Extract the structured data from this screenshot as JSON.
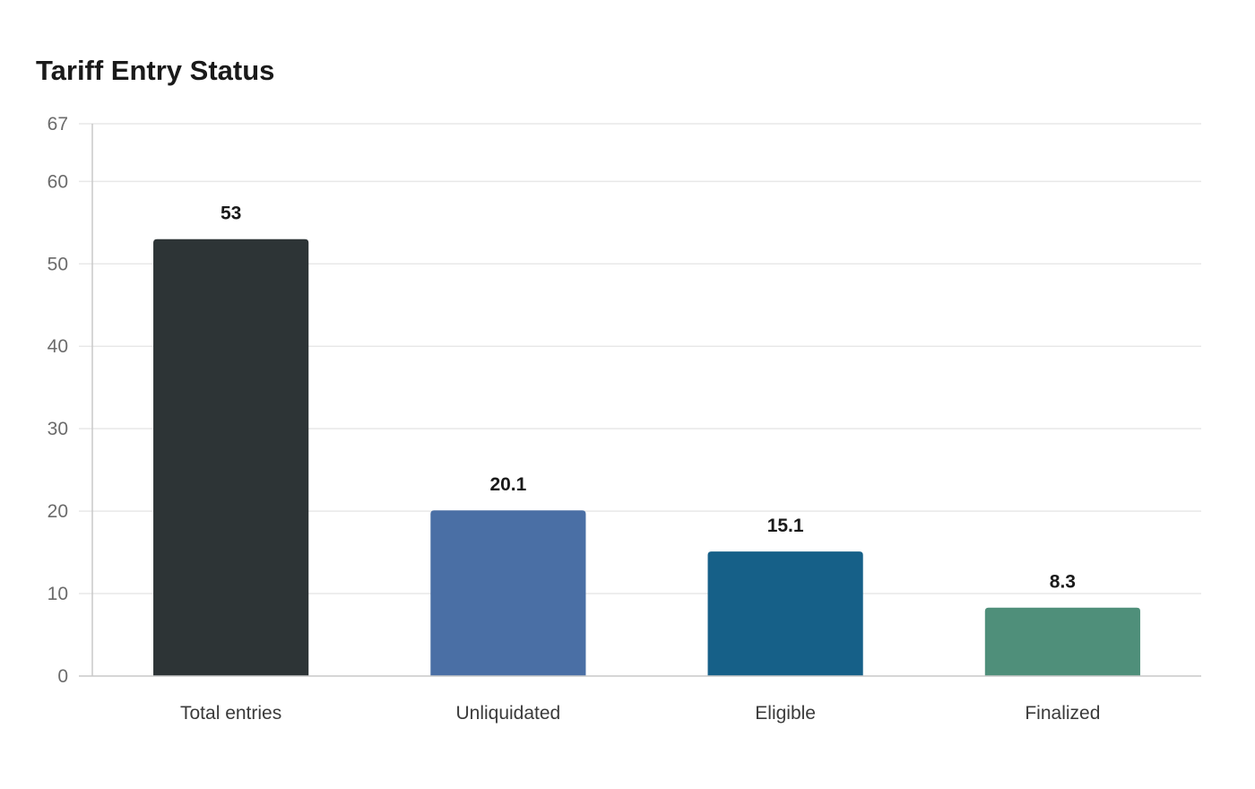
{
  "chart_data": {
    "type": "bar",
    "title": "Tariff Entry Status",
    "xlabel": "",
    "ylabel": "",
    "categories": [
      "Total entries",
      "Unliquidated",
      "Eligible",
      "Finalized"
    ],
    "values": [
      53,
      20.1,
      15.1,
      8.3
    ],
    "value_labels": [
      "53",
      "20.1",
      "15.1",
      "8.3"
    ],
    "colors": [
      "#2d3436",
      "#4a6fa5",
      "#166088",
      "#4f8f7a"
    ],
    "ylim": [
      0,
      67
    ],
    "yticks": [
      0,
      10,
      20,
      30,
      40,
      50,
      60,
      67
    ],
    "grid": true,
    "legend": "none"
  }
}
